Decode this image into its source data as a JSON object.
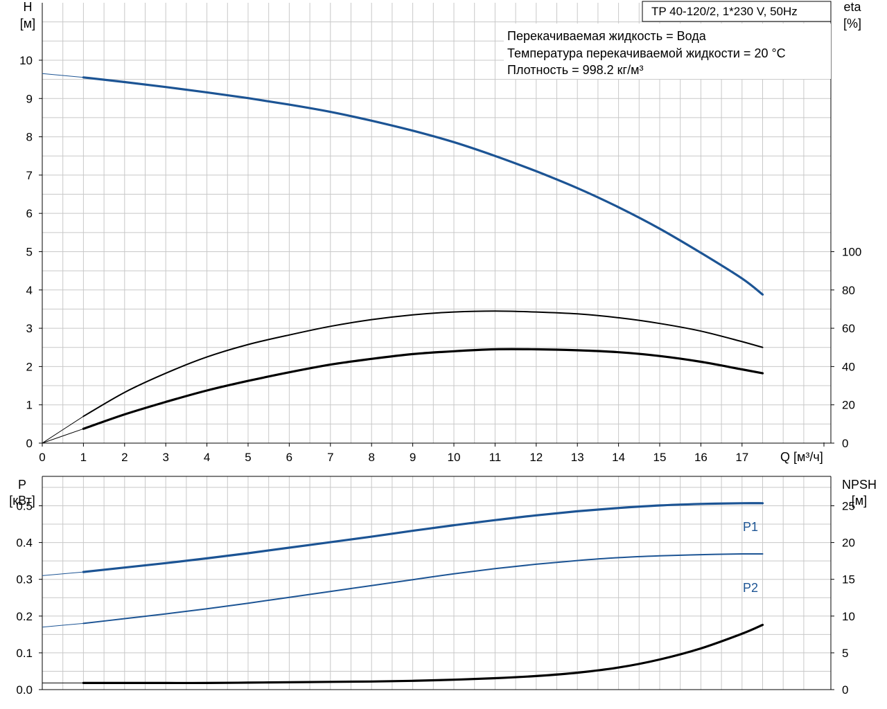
{
  "colors": {
    "blue": "#1c5494",
    "black": "#000000",
    "grid": "#c8c8c8",
    "axis": "#000000"
  },
  "chart_data": [
    {
      "type": "line",
      "title": "TP 40-120/2, 1*230 V, 50Hz",
      "info": [
        "Перекачиваемая жидкость = Вода",
        "Температура перекачиваемой жидкости = 20 °C",
        "Плотность = 998.2 кг/м³"
      ],
      "xlabel": "Q [м³/ч]",
      "ylabel_left": [
        "H",
        "[м]"
      ],
      "ylabel_right": [
        "eta",
        "[%]"
      ],
      "xlim": [
        0,
        19
      ],
      "ylim_left": [
        0,
        11.5
      ],
      "ylim_right": [
        0,
        230
      ],
      "x_ticks": [
        "0",
        "1",
        "2",
        "3",
        "4",
        "5",
        "6",
        "7",
        "8",
        "9",
        "10",
        "11",
        "12",
        "13",
        "14",
        "15",
        "16",
        "17"
      ],
      "y_left_ticks": [
        "0",
        "1",
        "2",
        "3",
        "4",
        "5",
        "6",
        "7",
        "8",
        "9",
        "10"
      ],
      "y_right_ticks": [
        "0",
        "20",
        "40",
        "60",
        "80",
        "100"
      ],
      "grid": true,
      "series": [
        {
          "id": "H",
          "axis": "left",
          "color": "#1c5494",
          "x": [
            0,
            1,
            2,
            3,
            4,
            5,
            6,
            7,
            8,
            9,
            10,
            11,
            12,
            13,
            14,
            15,
            16,
            17,
            17.5
          ],
          "y": [
            9.65,
            9.55,
            9.43,
            9.3,
            9.16,
            9.01,
            8.84,
            8.65,
            8.42,
            8.16,
            7.86,
            7.5,
            7.1,
            6.66,
            6.16,
            5.6,
            4.97,
            4.3,
            3.88
          ]
        },
        {
          "id": "eta_thin",
          "axis": "right",
          "color": "#000000",
          "x": [
            0,
            1,
            2,
            3,
            4,
            5,
            6,
            7,
            8,
            9,
            10,
            11,
            12,
            13,
            14,
            15,
            16,
            17,
            17.5
          ],
          "y": [
            0,
            14,
            26.5,
            36.5,
            45,
            51.5,
            56.5,
            61,
            64.5,
            67,
            68.5,
            69,
            68.5,
            67.5,
            65.5,
            62.5,
            58.5,
            53,
            50
          ]
        },
        {
          "id": "eta_thick",
          "axis": "right",
          "color": "#000000",
          "x": [
            0,
            1,
            2,
            3,
            4,
            5,
            6,
            7,
            8,
            9,
            10,
            11,
            12,
            13,
            14,
            15,
            16,
            17,
            17.5
          ],
          "y": [
            0,
            7.5,
            15,
            21.5,
            27.5,
            32.5,
            37,
            41,
            44,
            46.5,
            48,
            49,
            49,
            48.5,
            47.5,
            45.5,
            42.5,
            38.5,
            36.5
          ]
        }
      ]
    },
    {
      "type": "line",
      "xlim": [
        0,
        19
      ],
      "ylabel_left": [
        "P",
        "[кВт]"
      ],
      "ylabel_right": [
        "NPSH",
        "[м]"
      ],
      "ylim_left": [
        0,
        0.58
      ],
      "ylim_right": [
        0,
        29
      ],
      "y_left_ticks": [
        "0.0",
        "0.1",
        "0.2",
        "0.3",
        "0.4",
        "0.5"
      ],
      "y_right_ticks": [
        "0",
        "5",
        "10",
        "15",
        "20",
        "25"
      ],
      "grid": true,
      "series": [
        {
          "id": "P1",
          "name": "P1",
          "axis": "left",
          "color": "#1c5494",
          "x": [
            0,
            1,
            2,
            3,
            4,
            5,
            6,
            7,
            8,
            9,
            10,
            11,
            12,
            13,
            14,
            15,
            16,
            17,
            17.5
          ],
          "y": [
            0.31,
            0.32,
            0.332,
            0.344,
            0.357,
            0.371,
            0.386,
            0.401,
            0.416,
            0.432,
            0.447,
            0.461,
            0.474,
            0.485,
            0.494,
            0.501,
            0.505,
            0.507,
            0.507
          ]
        },
        {
          "id": "P2",
          "name": "P2",
          "axis": "left",
          "color": "#1c5494",
          "x": [
            0,
            1,
            2,
            3,
            4,
            5,
            6,
            7,
            8,
            9,
            10,
            11,
            12,
            13,
            14,
            15,
            16,
            17,
            17.5
          ],
          "y": [
            0.17,
            0.18,
            0.193,
            0.206,
            0.22,
            0.235,
            0.251,
            0.267,
            0.283,
            0.299,
            0.315,
            0.329,
            0.341,
            0.351,
            0.359,
            0.364,
            0.367,
            0.369,
            0.369
          ]
        },
        {
          "id": "NPSH",
          "axis": "right",
          "color": "#000000",
          "x": [
            0,
            1,
            2,
            3,
            4,
            5,
            6,
            7,
            8,
            9,
            10,
            11,
            12,
            13,
            14,
            15,
            16,
            17,
            17.5
          ],
          "y": [
            0.9,
            0.9,
            0.9,
            0.9,
            0.9,
            0.95,
            1.0,
            1.05,
            1.1,
            1.2,
            1.35,
            1.55,
            1.85,
            2.3,
            3.0,
            4.1,
            5.6,
            7.6,
            8.8
          ]
        }
      ]
    }
  ]
}
